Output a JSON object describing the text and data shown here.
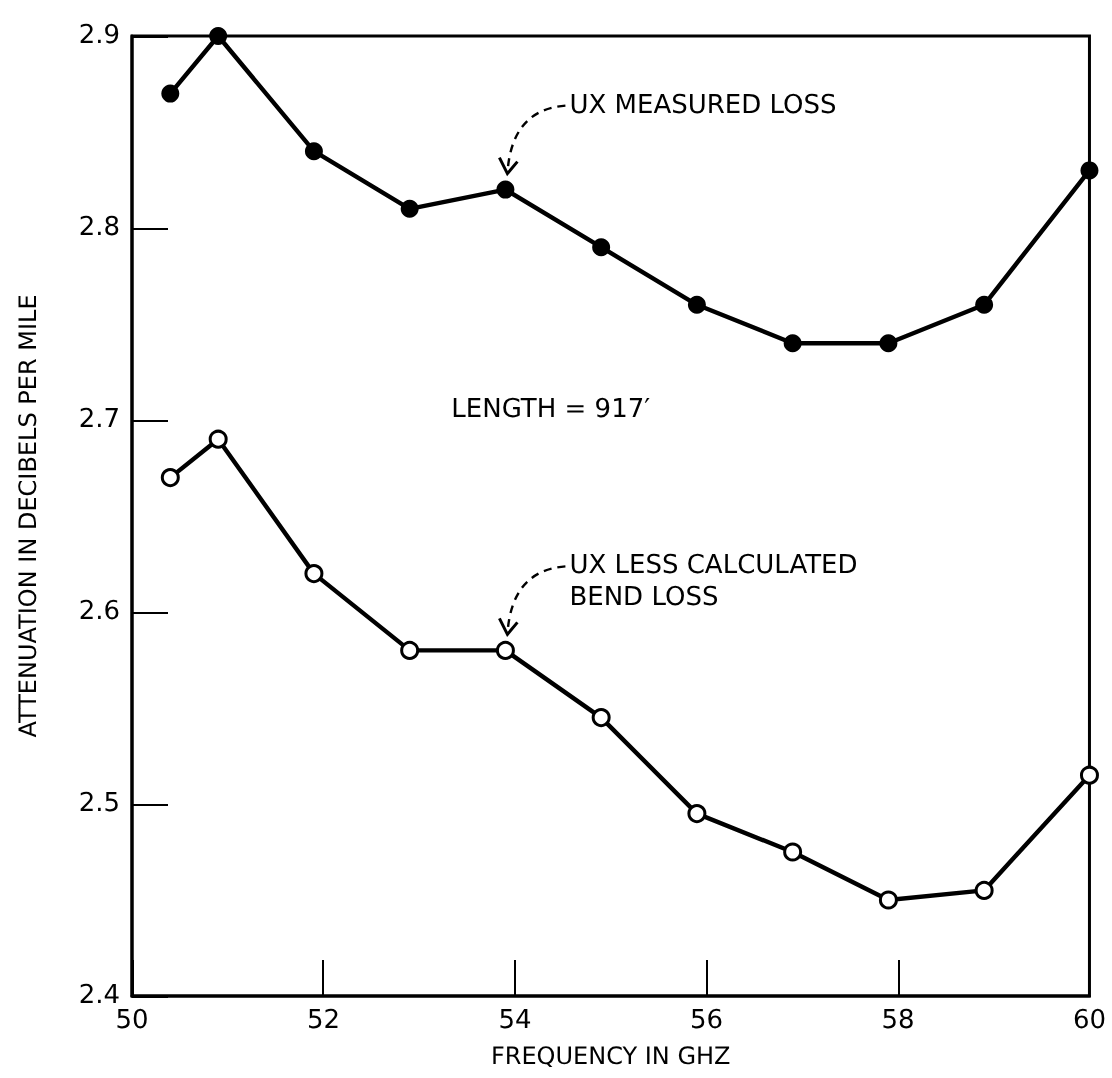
{
  "chart_data": {
    "type": "line",
    "xlabel": "FREQUENCY IN GHZ",
    "ylabel": "ATTENUATION IN DECIBELS PER MILE",
    "xlim": [
      50,
      60
    ],
    "xticks": [
      50,
      52,
      54,
      56,
      58,
      60
    ],
    "ylim": [
      2.4,
      2.9
    ],
    "yticks": [
      2.4,
      2.5,
      2.6,
      2.7,
      2.8,
      2.9
    ],
    "grid": false,
    "line_style": "solid",
    "x": [
      50.4,
      50.9,
      51.9,
      52.9,
      53.9,
      54.9,
      55.9,
      56.9,
      57.9,
      58.9,
      60
    ],
    "series": [
      {
        "color": "#000000",
        "marker": "circle",
        "values": [
          2.87,
          2.9,
          2.84,
          2.81,
          2.82,
          2.79,
          2.76,
          2.74,
          2.74,
          2.76,
          2.83
        ]
      },
      {
        "color": "#000000",
        "marker": "circle",
        "values": [
          2.67,
          2.69,
          2.62,
          2.58,
          2.58,
          2.545,
          2.495,
          2.475,
          2.45,
          2.455,
          2.515
        ]
      }
    ],
    "annotations": [
      {
        "text": "UX MEASURED LOSS",
        "x": 53.9,
        "y": 2.82
      },
      "LENGTH = 917′",
      {
        "text": "UX LESS CALCULATED\nBEND LOSS",
        "x": 53.9,
        "y": 2.58
      }
    ]
  }
}
